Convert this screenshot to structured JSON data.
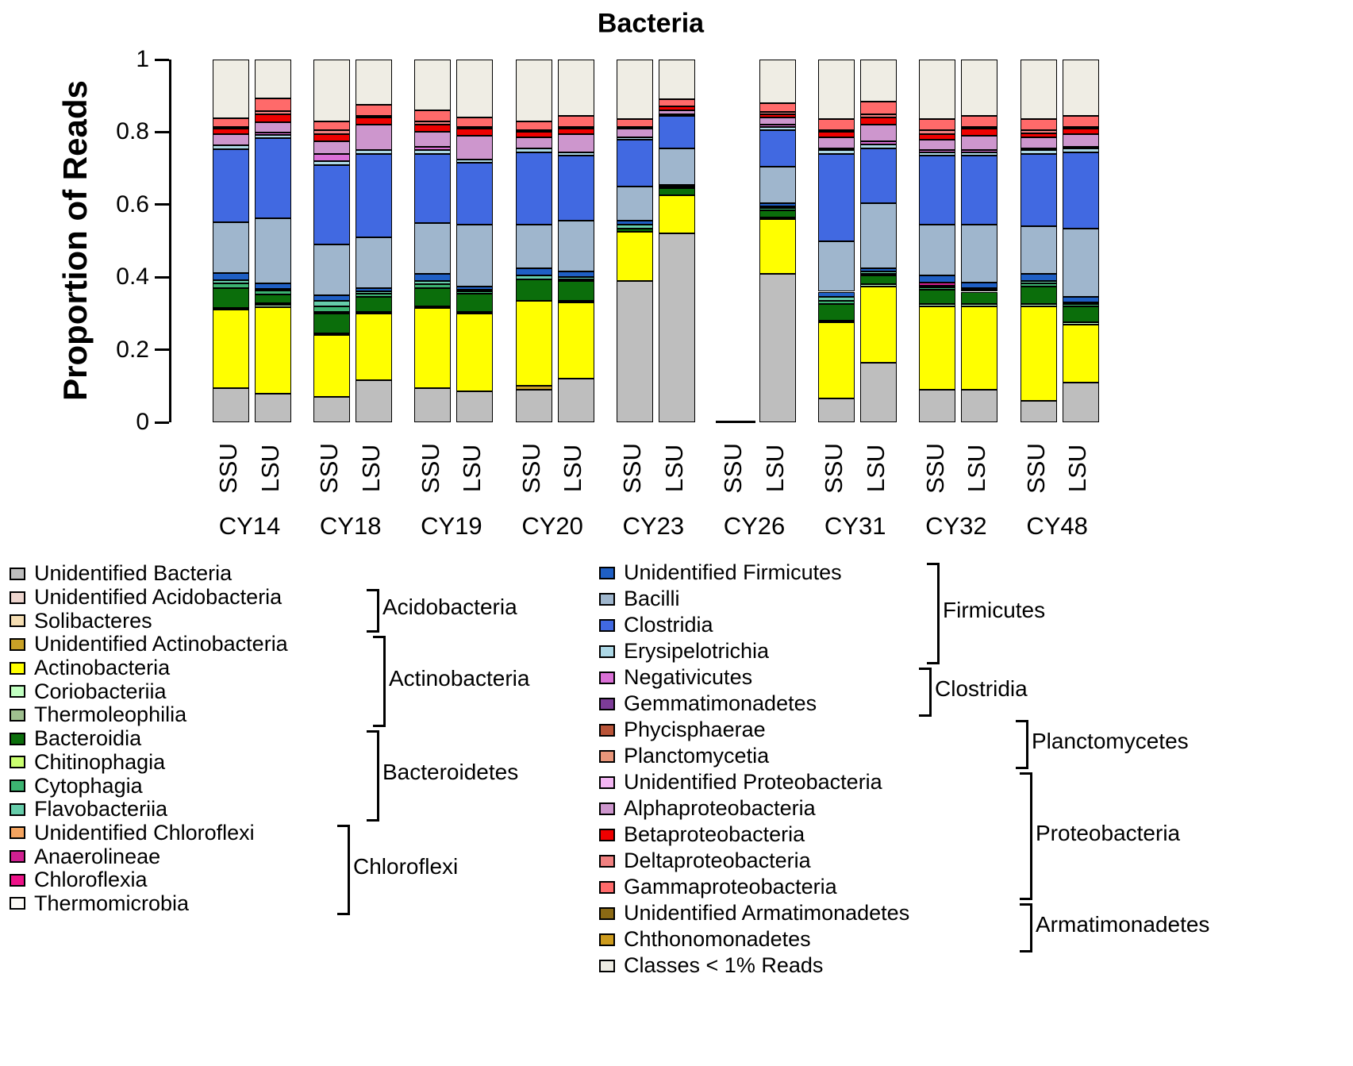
{
  "chart_data": {
    "type": "stacked-bar",
    "title": "Bacteria",
    "ylabel": "Proportion of Reads",
    "ylim": [
      0,
      1
    ],
    "yticks": [
      "0",
      "0.2",
      "0.4",
      "0.6",
      "0.8",
      "1"
    ],
    "grid": false,
    "groups": [
      "CY14",
      "CY18",
      "CY19",
      "CY20",
      "CY23",
      "CY26",
      "CY31",
      "CY32",
      "CY48"
    ],
    "subunits": [
      "SSU",
      "LSU"
    ],
    "classes": [
      {
        "name": "Unidentified Bacteria",
        "color": "#BEBEBE"
      },
      {
        "name": "Unidentified Acidobacteria",
        "color": "#EDD5CE"
      },
      {
        "name": "Solibacteres",
        "color": "#F5DEB3"
      },
      {
        "name": "Unidentified Actinobacteria",
        "color": "#C9A227"
      },
      {
        "name": "Actinobacteria",
        "color": "#FFFF00"
      },
      {
        "name": "Coriobacteriia",
        "color": "#C1FFC1"
      },
      {
        "name": "Thermoleophilia",
        "color": "#9FBF8F"
      },
      {
        "name": "Bacteroidia",
        "color": "#0B6E0B"
      },
      {
        "name": "Chitinophagia",
        "color": "#CAFF70"
      },
      {
        "name": "Cytophagia",
        "color": "#3CB371"
      },
      {
        "name": "Flavobacteriia",
        "color": "#66CDAA"
      },
      {
        "name": "Unidentified Chloroflexi",
        "color": "#F4A460"
      },
      {
        "name": "Anaerolineae",
        "color": "#D02090"
      },
      {
        "name": "Chloroflexia",
        "color": "#EE1289"
      },
      {
        "name": "Thermomicrobia",
        "color": "#FDFBF7"
      },
      {
        "name": "Unidentified Firmicutes",
        "color": "#1F5FC4"
      },
      {
        "name": "Bacilli",
        "color": "#9FB6CD"
      },
      {
        "name": "Clostridia",
        "color": "#4169E1"
      },
      {
        "name": "Erysipelotrichia",
        "color": "#ADD8E6"
      },
      {
        "name": "Negativicutes",
        "color": "#DA70D6"
      },
      {
        "name": "Gemmatimonadetes",
        "color": "#7D3C98"
      },
      {
        "name": "Phycisphaerae",
        "color": "#B95438"
      },
      {
        "name": "Planctomycetia",
        "color": "#E9967A"
      },
      {
        "name": "Unidentified Proteobacteria",
        "color": "#F3B6F3"
      },
      {
        "name": "Alphaproteobacteria",
        "color": "#CD96CD"
      },
      {
        "name": "Betaproteobacteria",
        "color": "#EE0000"
      },
      {
        "name": "Deltaproteobacteria",
        "color": "#F08080"
      },
      {
        "name": "Gammaproteobacteria",
        "color": "#FF6A6A"
      },
      {
        "name": "Unidentified Armatimonadetes",
        "color": "#8B6914"
      },
      {
        "name": "Chthonomonadetes",
        "color": "#CD9B1D"
      },
      {
        "name": "Classes < 1% Reads",
        "color": "#EFEDE4"
      }
    ],
    "bars": [
      {
        "group": "CY14",
        "subunit": "SSU",
        "values": {
          "Unidentified Bacteria": 0.095,
          "Actinobacteria": 0.215,
          "Coriobacteriia": 0.005,
          "Bacteroidia": 0.055,
          "Cytophagia": 0.012,
          "Flavobacteriia": 0.01,
          "Unidentified Firmicutes": 0.02,
          "Bacilli": 0.14,
          "Clostridia": 0.2,
          "Erysipelotrichia": 0.012,
          "Alphaproteobacteria": 0.03,
          "Betaproteobacteria": 0.015,
          "Deltaproteobacteria": 0.005,
          "Gammaproteobacteria": 0.025,
          "Classes < 1% Reads": 0.161
        }
      },
      {
        "group": "CY14",
        "subunit": "LSU",
        "values": {
          "Unidentified Bacteria": 0.078,
          "Actinobacteria": 0.24,
          "Coriobacteriia": 0.005,
          "Thermoleophilia": 0.005,
          "Bacteroidia": 0.025,
          "Cytophagia": 0.01,
          "Flavobacteriia": 0.005,
          "Unidentified Firmicutes": 0.015,
          "Bacilli": 0.18,
          "Clostridia": 0.22,
          "Erysipelotrichia": 0.01,
          "Negativicutes": 0.005,
          "Alphaproteobacteria": 0.03,
          "Betaproteobacteria": 0.02,
          "Deltaproteobacteria": 0.01,
          "Gammaproteobacteria": 0.035,
          "Classes < 1% Reads": 0.107
        }
      },
      {
        "group": "CY18",
        "subunit": "SSU",
        "values": {
          "Unidentified Bacteria": 0.07,
          "Actinobacteria": 0.17,
          "Coriobacteriia": 0.005,
          "Bacteroidia": 0.055,
          "Chitinophagia": 0.005,
          "Cytophagia": 0.015,
          "Flavobacteriia": 0.015,
          "Unidentified Firmicutes": 0.015,
          "Bacilli": 0.14,
          "Clostridia": 0.22,
          "Erysipelotrichia": 0.01,
          "Negativicutes": 0.02,
          "Alphaproteobacteria": 0.035,
          "Betaproteobacteria": 0.02,
          "Deltaproteobacteria": 0.01,
          "Gammaproteobacteria": 0.025,
          "Classes < 1% Reads": 0.17
        }
      },
      {
        "group": "CY18",
        "subunit": "LSU",
        "values": {
          "Unidentified Bacteria": 0.115,
          "Actinobacteria": 0.185,
          "Coriobacteriia": 0.005,
          "Bacteroidia": 0.04,
          "Cytophagia": 0.01,
          "Flavobacteriia": 0.005,
          "Unidentified Firmicutes": 0.01,
          "Bacilli": 0.14,
          "Clostridia": 0.23,
          "Erysipelotrichia": 0.01,
          "Alphaproteobacteria": 0.07,
          "Betaproteobacteria": 0.02,
          "Deltaproteobacteria": 0.005,
          "Gammaproteobacteria": 0.03,
          "Classes < 1% Reads": 0.125
        }
      },
      {
        "group": "CY19",
        "subunit": "SSU",
        "values": {
          "Unidentified Bacteria": 0.095,
          "Actinobacteria": 0.22,
          "Coriobacteriia": 0.005,
          "Bacteroidia": 0.05,
          "Cytophagia": 0.01,
          "Flavobacteriia": 0.01,
          "Unidentified Firmicutes": 0.02,
          "Bacilli": 0.14,
          "Clostridia": 0.19,
          "Erysipelotrichia": 0.01,
          "Negativicutes": 0.01,
          "Alphaproteobacteria": 0.04,
          "Betaproteobacteria": 0.02,
          "Deltaproteobacteria": 0.01,
          "Gammaproteobacteria": 0.03,
          "Classes < 1% Reads": 0.14
        }
      },
      {
        "group": "CY19",
        "subunit": "LSU",
        "values": {
          "Unidentified Bacteria": 0.085,
          "Actinobacteria": 0.215,
          "Thermoleophilia": 0.005,
          "Bacteroidia": 0.05,
          "Cytophagia": 0.005,
          "Flavobacteriia": 0.005,
          "Unidentified Firmicutes": 0.01,
          "Bacilli": 0.17,
          "Clostridia": 0.17,
          "Erysipelotrichia": 0.01,
          "Alphaproteobacteria": 0.065,
          "Betaproteobacteria": 0.02,
          "Deltaproteobacteria": 0.005,
          "Gammaproteobacteria": 0.025,
          "Classes < 1% Reads": 0.16
        }
      },
      {
        "group": "CY20",
        "subunit": "SSU",
        "values": {
          "Unidentified Bacteria": 0.09,
          "Unidentified Actinobacteria": 0.01,
          "Actinobacteria": 0.235,
          "Bacteroidia": 0.06,
          "Flavobacteriia": 0.01,
          "Unidentified Firmicutes": 0.02,
          "Bacilli": 0.12,
          "Clostridia": 0.2,
          "Erysipelotrichia": 0.01,
          "Alphaproteobacteria": 0.03,
          "Betaproteobacteria": 0.015,
          "Deltaproteobacteria": 0.005,
          "Gammaproteobacteria": 0.025,
          "Classes < 1% Reads": 0.17
        }
      },
      {
        "group": "CY20",
        "subunit": "LSU",
        "values": {
          "Unidentified Bacteria": 0.12,
          "Actinobacteria": 0.21,
          "Coriobacteriia": 0.005,
          "Bacteroidia": 0.055,
          "Cytophagia": 0.005,
          "Flavobacteriia": 0.005,
          "Unidentified Firmicutes": 0.015,
          "Bacilli": 0.14,
          "Clostridia": 0.18,
          "Erysipelotrichia": 0.01,
          "Alphaproteobacteria": 0.05,
          "Betaproteobacteria": 0.015,
          "Deltaproteobacteria": 0.005,
          "Gammaproteobacteria": 0.03,
          "Classes < 1% Reads": 0.155
        }
      },
      {
        "group": "CY23",
        "subunit": "SSU",
        "values": {
          "Unidentified Bacteria": 0.39,
          "Actinobacteria": 0.135,
          "Bacteroidia": 0.01,
          "Flavobacteriia": 0.01,
          "Unidentified Firmicutes": 0.01,
          "Bacilli": 0.095,
          "Clostridia": 0.13,
          "Erysipelotrichia": 0.005,
          "Alphaproteobacteria": 0.025,
          "Betaproteobacteria": 0.005,
          "Gammaproteobacteria": 0.02,
          "Classes < 1% Reads": 0.165
        }
      },
      {
        "group": "CY23",
        "subunit": "LSU",
        "values": {
          "Unidentified Bacteria": 0.52,
          "Actinobacteria": 0.105,
          "Bacteroidia": 0.02,
          "Flavobacteriia": 0.005,
          "Unidentified Firmicutes": 0.005,
          "Bacilli": 0.1,
          "Clostridia": 0.09,
          "Erysipelotrichia": 0.005,
          "Alphaproteobacteria": 0.01,
          "Betaproteobacteria": 0.01,
          "Gammaproteobacteria": 0.02,
          "Classes < 1% Reads": 0.11
        }
      },
      {
        "group": "CY26",
        "subunit": "SSU",
        "values": {}
      },
      {
        "group": "CY26",
        "subunit": "LSU",
        "values": {
          "Unidentified Bacteria": 0.41,
          "Actinobacteria": 0.15,
          "Coriobacteriia": 0.005,
          "Bacteroidia": 0.02,
          "Cytophagia": 0.005,
          "Flavobacteriia": 0.005,
          "Unidentified Firmicutes": 0.01,
          "Bacilli": 0.1,
          "Clostridia": 0.1,
          "Erysipelotrichia": 0.01,
          "Negativicutes": 0.005,
          "Alphaproteobacteria": 0.02,
          "Betaproteobacteria": 0.01,
          "Deltaproteobacteria": 0.005,
          "Gammaproteobacteria": 0.025,
          "Classes < 1% Reads": 0.12
        }
      },
      {
        "group": "CY31",
        "subunit": "SSU",
        "values": {
          "Unidentified Bacteria": 0.065,
          "Actinobacteria": 0.21,
          "Coriobacteriia": 0.005,
          "Bacteroidia": 0.045,
          "Cytophagia": 0.01,
          "Flavobacteriia": 0.01,
          "Unidentified Firmicutes": 0.015,
          "Bacilli": 0.14,
          "Clostridia": 0.24,
          "Erysipelotrichia": 0.01,
          "Negativicutes": 0.005,
          "Alphaproteobacteria": 0.03,
          "Betaproteobacteria": 0.015,
          "Deltaproteobacteria": 0.005,
          "Gammaproteobacteria": 0.03,
          "Classes < 1% Reads": 0.165
        }
      },
      {
        "group": "CY31",
        "subunit": "LSU",
        "values": {
          "Unidentified Bacteria": 0.165,
          "Actinobacteria": 0.21,
          "Coriobacteriia": 0.005,
          "Bacteroidia": 0.025,
          "Cytophagia": 0.005,
          "Flavobacteriia": 0.005,
          "Unidentified Firmicutes": 0.01,
          "Bacilli": 0.18,
          "Clostridia": 0.15,
          "Erysipelotrichia": 0.01,
          "Negativicutes": 0.01,
          "Alphaproteobacteria": 0.045,
          "Betaproteobacteria": 0.02,
          "Deltaproteobacteria": 0.01,
          "Gammaproteobacteria": 0.035,
          "Classes < 1% Reads": 0.115
        }
      },
      {
        "group": "CY32",
        "subunit": "SSU",
        "values": {
          "Unidentified Bacteria": 0.09,
          "Actinobacteria": 0.23,
          "Coriobacteriia": 0.005,
          "Bacteroidia": 0.04,
          "Anaerolineae": 0.008,
          "Cytophagia": 0.007,
          "Flavobacteriia": 0.005,
          "Unidentified Firmicutes": 0.02,
          "Bacilli": 0.14,
          "Clostridia": 0.19,
          "Erysipelotrichia": 0.01,
          "Negativicutes": 0.005,
          "Alphaproteobacteria": 0.03,
          "Betaproteobacteria": 0.015,
          "Deltaproteobacteria": 0.01,
          "Gammaproteobacteria": 0.03,
          "Classes < 1% Reads": 0.165
        }
      },
      {
        "group": "CY32",
        "subunit": "LSU",
        "values": {
          "Unidentified Bacteria": 0.09,
          "Actinobacteria": 0.23,
          "Coriobacteriia": 0.005,
          "Bacteroidia": 0.035,
          "Cytophagia": 0.005,
          "Flavobacteriia": 0.005,
          "Unidentified Firmicutes": 0.015,
          "Bacilli": 0.16,
          "Clostridia": 0.19,
          "Erysipelotrichia": 0.01,
          "Negativicutes": 0.005,
          "Alphaproteobacteria": 0.04,
          "Betaproteobacteria": 0.02,
          "Deltaproteobacteria": 0.005,
          "Gammaproteobacteria": 0.03,
          "Classes < 1% Reads": 0.155
        }
      },
      {
        "group": "CY48",
        "subunit": "SSU",
        "values": {
          "Unidentified Bacteria": 0.06,
          "Actinobacteria": 0.26,
          "Coriobacteriia": 0.005,
          "Bacteroidia": 0.05,
          "Cytophagia": 0.008,
          "Flavobacteriia": 0.007,
          "Unidentified Firmicutes": 0.02,
          "Bacilli": 0.13,
          "Clostridia": 0.2,
          "Erysipelotrichia": 0.01,
          "Negativicutes": 0.005,
          "Alphaproteobacteria": 0.03,
          "Betaproteobacteria": 0.012,
          "Deltaproteobacteria": 0.008,
          "Gammaproteobacteria": 0.03,
          "Classes < 1% Reads": 0.165
        }
      },
      {
        "group": "CY48",
        "subunit": "LSU",
        "values": {
          "Unidentified Bacteria": 0.11,
          "Actinobacteria": 0.16,
          "Coriobacteriia": 0.005,
          "Bacteroidia": 0.045,
          "Cytophagia": 0.005,
          "Flavobacteriia": 0.005,
          "Unidentified Firmicutes": 0.015,
          "Bacilli": 0.19,
          "Clostridia": 0.21,
          "Erysipelotrichia": 0.01,
          "Negativicutes": 0.005,
          "Alphaproteobacteria": 0.035,
          "Betaproteobacteria": 0.015,
          "Deltaproteobacteria": 0.005,
          "Gammaproteobacteria": 0.03,
          "Classes < 1% Reads": 0.155
        }
      }
    ]
  },
  "legend": {
    "left_count": 15,
    "brackets": [
      {
        "column": "left",
        "start": 1,
        "end": 2,
        "label": "Acidobacteria"
      },
      {
        "column": "left",
        "start": 3,
        "end": 6,
        "label": "Actinobacteria"
      },
      {
        "column": "left",
        "start": 7,
        "end": 10,
        "label": "Bacteroidetes"
      },
      {
        "column": "left",
        "start": 11,
        "end": 14,
        "label": "Chloroflexi"
      },
      {
        "column": "right",
        "start": 0,
        "end": 3,
        "label": "Firmicutes"
      },
      {
        "column": "right",
        "start": 4,
        "end": 5,
        "label": "Clostridia"
      },
      {
        "column": "right",
        "start": 6,
        "end": 7,
        "label": "Planctomycetes"
      },
      {
        "column": "right",
        "start": 8,
        "end": 12,
        "label": "Proteobacteria"
      },
      {
        "column": "right",
        "start": 13,
        "end": 14,
        "label": "Armatimonadetes"
      }
    ]
  }
}
